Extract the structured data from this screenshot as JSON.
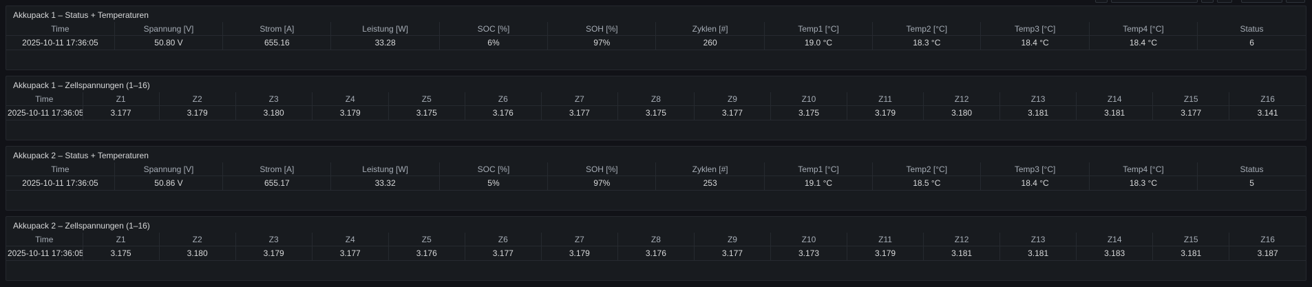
{
  "colors": {
    "page_bg": "#111217",
    "panel_bg": "#181b1f",
    "panel_border": "#25282e",
    "divider": "#262a30",
    "header_text": "#a6adb6",
    "value_text": "#d8d9da",
    "title_text": "#d8d9da"
  },
  "panels": [
    {
      "title": "Akkupack 1 – Status + Temperaturen",
      "columns": [
        "Time",
        "Spannung [V]",
        "Strom [A]",
        "Leistung [W]",
        "SOC [%]",
        "SOH [%]",
        "Zyklen [#]",
        "Temp1 [°C]",
        "Temp2 [°C]",
        "Temp3 [°C]",
        "Temp4 [°C]",
        "Status"
      ],
      "rows": [
        [
          "2025-10-11 17:36:05",
          "50.80 V",
          "655.16",
          "33.28",
          "6%",
          "97%",
          "260",
          "19.0 °C",
          "18.3 °C",
          "18.4 °C",
          "18.4 °C",
          "6"
        ]
      ]
    },
    {
      "title": "Akkupack 1 – Zellspannungen (1–16)",
      "columns": [
        "Time",
        "Z1",
        "Z2",
        "Z3",
        "Z4",
        "Z5",
        "Z6",
        "Z7",
        "Z8",
        "Z9",
        "Z10",
        "Z11",
        "Z12",
        "Z13",
        "Z14",
        "Z15",
        "Z16"
      ],
      "rows": [
        [
          "2025-10-11 17:36:05",
          "3.177",
          "3.179",
          "3.180",
          "3.179",
          "3.175",
          "3.176",
          "3.177",
          "3.175",
          "3.177",
          "3.175",
          "3.179",
          "3.180",
          "3.181",
          "3.181",
          "3.177",
          "3.141"
        ]
      ]
    },
    {
      "title": "Akkupack 2 – Status + Temperaturen",
      "columns": [
        "Time",
        "Spannung [V]",
        "Strom [A]",
        "Leistung [W]",
        "SOC [%]",
        "SOH [%]",
        "Zyklen [#]",
        "Temp1 [°C]",
        "Temp2 [°C]",
        "Temp3 [°C]",
        "Temp4 [°C]",
        "Status"
      ],
      "rows": [
        [
          "2025-10-11 17:36:05",
          "50.86 V",
          "655.17",
          "33.32",
          "5%",
          "97%",
          "253",
          "19.1 °C",
          "18.5 °C",
          "18.4 °C",
          "18.3 °C",
          "5"
        ]
      ]
    },
    {
      "title": "Akkupack 2 – Zellspannungen (1–16)",
      "columns": [
        "Time",
        "Z1",
        "Z2",
        "Z3",
        "Z4",
        "Z5",
        "Z6",
        "Z7",
        "Z8",
        "Z9",
        "Z10",
        "Z11",
        "Z12",
        "Z13",
        "Z14",
        "Z15",
        "Z16"
      ],
      "rows": [
        [
          "2025-10-11 17:36:05",
          "3.175",
          "3.180",
          "3.179",
          "3.177",
          "3.176",
          "3.177",
          "3.179",
          "3.176",
          "3.177",
          "3.173",
          "3.179",
          "3.181",
          "3.181",
          "3.183",
          "3.181",
          "3.187"
        ]
      ]
    }
  ]
}
